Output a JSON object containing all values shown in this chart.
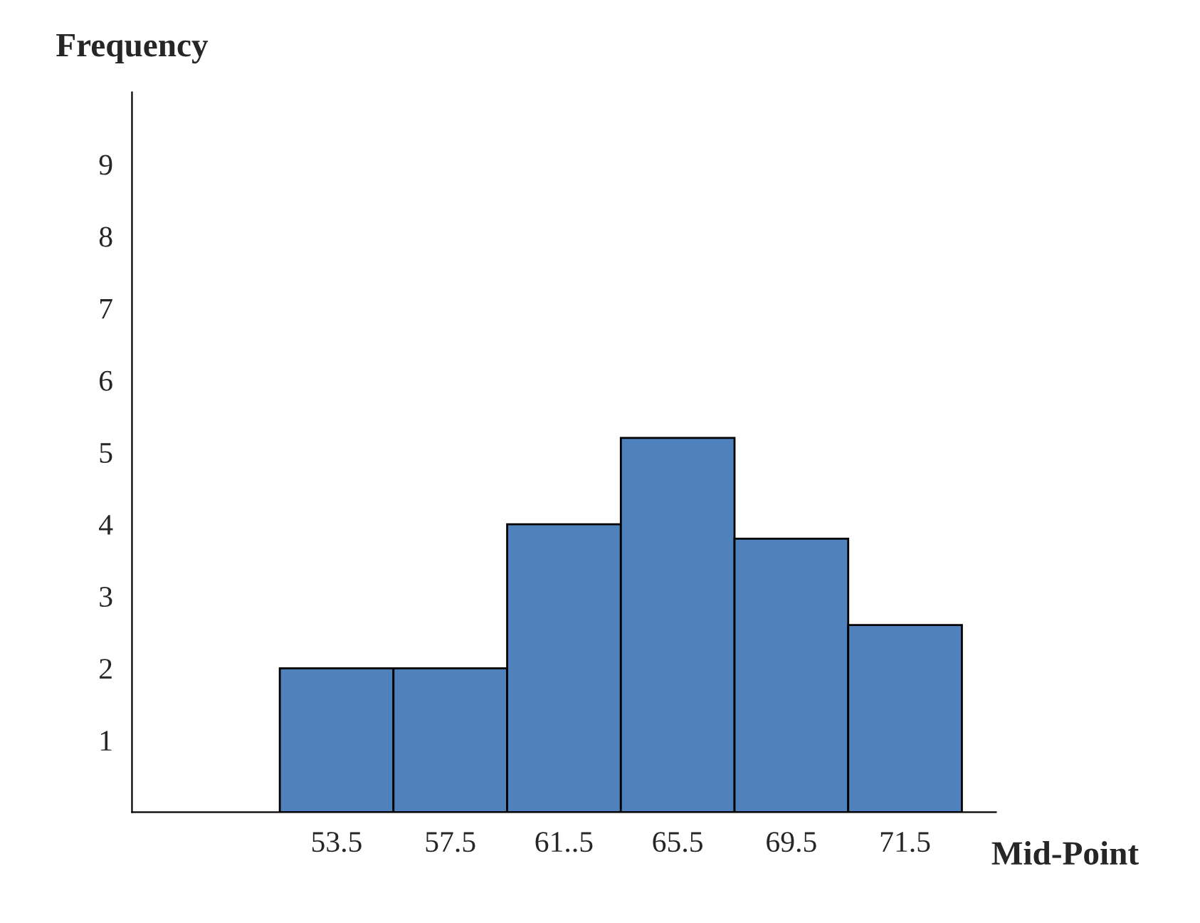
{
  "chart_data": {
    "type": "bar",
    "ylabel": "Frequency",
    "xlabel": "Mid-Point",
    "categories": [
      "53.5",
      "57.5",
      "61..5",
      "65.5",
      "69.5",
      "71.5"
    ],
    "values": [
      2,
      2,
      4,
      5.2,
      3.8,
      2.6
    ],
    "color": "#4f81bd",
    "ylim": [
      0,
      10
    ],
    "yticks": [
      1,
      2,
      3,
      4,
      5,
      6,
      7,
      8,
      9
    ],
    "grid": false,
    "legend": false
  }
}
